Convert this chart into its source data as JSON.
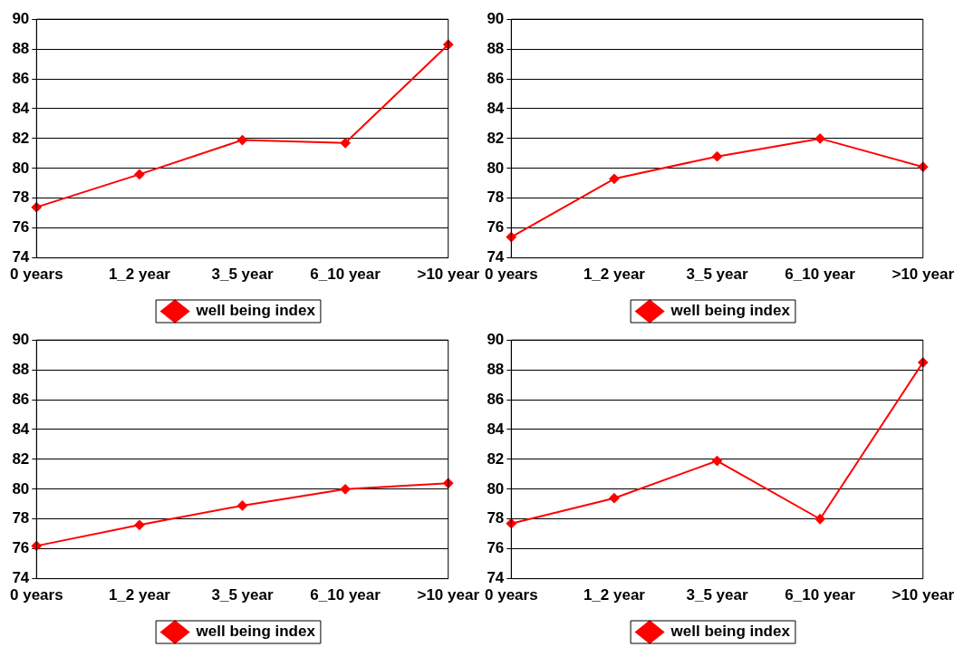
{
  "chart_data": [
    {
      "type": "line",
      "categories": [
        "0 years",
        "1_2 year",
        "3_5 year",
        "6_10 year",
        ">10 year"
      ],
      "series": [
        {
          "name": "well being index",
          "color": "#ff0000",
          "values": [
            77.4,
            79.6,
            81.9,
            81.7,
            88.3
          ]
        }
      ],
      "ylim": [
        74,
        90
      ],
      "yticks": [
        74,
        76,
        78,
        80,
        82,
        84,
        86,
        88,
        90
      ],
      "grid": "y",
      "legend": "bottom",
      "marker": "diamond"
    },
    {
      "type": "line",
      "categories": [
        "0 years",
        "1_2 year",
        "3_5 year",
        "6_10 year",
        ">10 year"
      ],
      "series": [
        {
          "name": "well being index",
          "color": "#ff0000",
          "values": [
            75.4,
            79.3,
            80.8,
            82.0,
            80.1
          ]
        }
      ],
      "ylim": [
        74,
        90
      ],
      "yticks": [
        74,
        76,
        78,
        80,
        82,
        84,
        86,
        88,
        90
      ],
      "grid": "y",
      "legend": "bottom",
      "marker": "diamond"
    },
    {
      "type": "line",
      "categories": [
        "0 years",
        "1_2 year",
        "3_5 year",
        "6_10 year",
        ">10 year"
      ],
      "series": [
        {
          "name": "well being index",
          "color": "#ff0000",
          "values": [
            76.2,
            77.6,
            78.9,
            80.0,
            80.4
          ]
        }
      ],
      "ylim": [
        74,
        90
      ],
      "yticks": [
        74,
        76,
        78,
        80,
        82,
        84,
        86,
        88,
        90
      ],
      "grid": "y",
      "legend": "bottom",
      "marker": "diamond"
    },
    {
      "type": "line",
      "categories": [
        "0 years",
        "1_2 year",
        "3_5 year",
        "6_10 year",
        ">10 year"
      ],
      "series": [
        {
          "name": "well being index",
          "color": "#ff0000",
          "values": [
            77.7,
            79.4,
            81.9,
            78.0,
            88.5
          ]
        }
      ],
      "ylim": [
        74,
        90
      ],
      "yticks": [
        74,
        76,
        78,
        80,
        82,
        84,
        86,
        88,
        90
      ],
      "grid": "y",
      "legend": "bottom",
      "marker": "diamond"
    }
  ]
}
